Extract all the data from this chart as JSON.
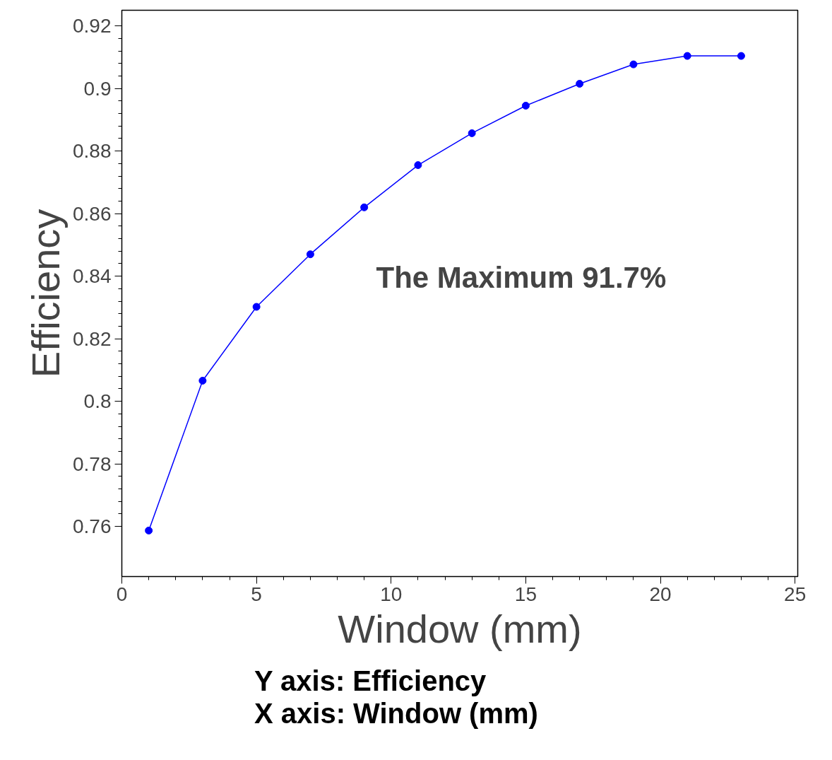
{
  "chart_data": {
    "type": "line",
    "xlabel": "Window (mm)",
    "ylabel": "Efficiency",
    "x": [
      1,
      3,
      5,
      7,
      9,
      11,
      13,
      15,
      17,
      19,
      21,
      23
    ],
    "series": [
      {
        "color": "#0000ff",
        "values": [
          0.7587,
          0.8066,
          0.8302,
          0.847,
          0.862,
          0.8755,
          0.8857,
          0.8945,
          0.9015,
          0.9077,
          0.9104,
          0.9104
        ]
      }
    ],
    "xlim": [
      0,
      25.1
    ],
    "ylim": [
      0.744,
      0.925
    ],
    "xticks": [
      0,
      5,
      10,
      15,
      20,
      25
    ],
    "yticks": [
      0.76,
      0.78,
      0.8,
      0.82,
      0.84,
      0.86,
      0.88,
      0.9,
      0.92
    ],
    "marker": "circle",
    "line_style": "solid",
    "grid": false,
    "annotations": [
      "The Maximum 91.7%",
      "Y axis: Efficiency",
      "X axis: Window (mm)"
    ]
  }
}
